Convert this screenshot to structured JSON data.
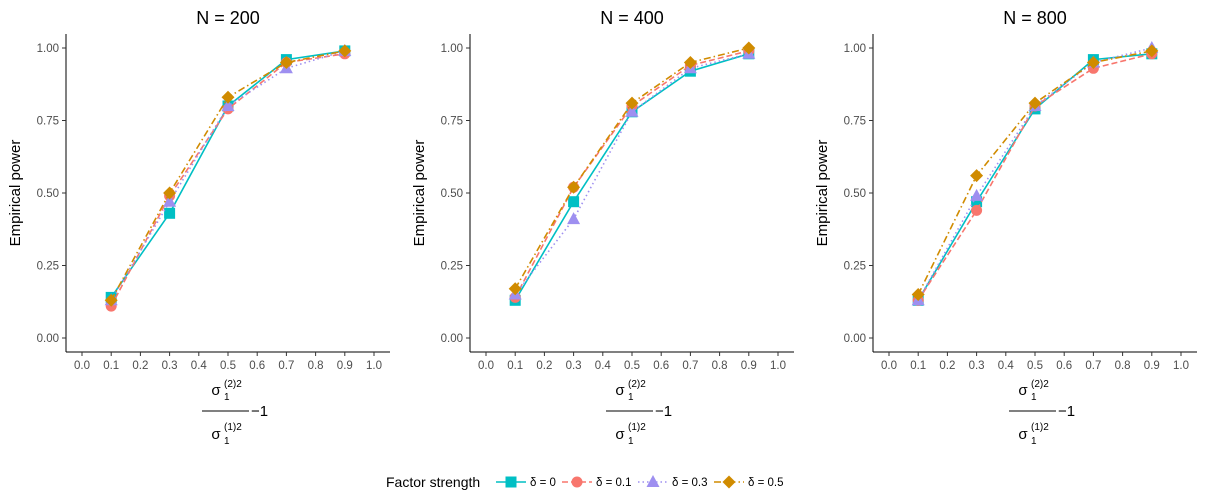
{
  "chart_data": {
    "type": "line",
    "xlabel": {
      "numerator_base": "σ",
      "numerator_sub": "1",
      "numerator_sup": "(2)2",
      "denominator_base": "σ",
      "denominator_sub": "1",
      "denominator_sup": "(1)2",
      "suffix": "−1"
    },
    "ylabel": "Empirical power",
    "xlim": [
      0.0,
      1.0
    ],
    "ylim": [
      0.0,
      1.0
    ],
    "x_ticks": [
      "0.0",
      "0.1",
      "0.2",
      "0.3",
      "0.4",
      "0.5",
      "0.6",
      "0.7",
      "0.8",
      "0.9",
      "1.0"
    ],
    "y_ticks": [
      "0.00",
      "0.25",
      "0.50",
      "0.75",
      "1.00"
    ],
    "grid": false,
    "legend": {
      "title": "Factor strength",
      "placement": "bottom",
      "entries": [
        {
          "label_prefix": "δ",
          "label_value": "0",
          "color": "#00BFC4",
          "marker": "square",
          "dash": "solid"
        },
        {
          "label_prefix": "δ",
          "label_value": "0.1",
          "color": "#F8766D",
          "marker": "circle",
          "dash": "dashed"
        },
        {
          "label_prefix": "δ",
          "label_value": "0.3",
          "color": "#9E8FF0",
          "marker": "triangle",
          "dash": "dotted"
        },
        {
          "label_prefix": "δ",
          "label_value": "0.5",
          "color": "#D08B00",
          "marker": "diamond",
          "dash": "dotdash"
        }
      ]
    },
    "x": [
      0.1,
      0.3,
      0.5,
      0.7,
      0.9
    ],
    "panels": [
      {
        "title": "N = 200",
        "series": [
          {
            "name": "δ = 0",
            "values": [
              0.14,
              0.43,
              0.8,
              0.96,
              0.99
            ]
          },
          {
            "name": "δ = 0.1",
            "values": [
              0.11,
              0.49,
              0.79,
              0.95,
              0.98
            ]
          },
          {
            "name": "δ = 0.3",
            "values": [
              0.13,
              0.47,
              0.8,
              0.93,
              0.99
            ]
          },
          {
            "name": "δ = 0.5",
            "values": [
              0.13,
              0.5,
              0.83,
              0.95,
              0.99
            ]
          }
        ]
      },
      {
        "title": "N = 400",
        "series": [
          {
            "name": "δ = 0",
            "values": [
              0.13,
              0.47,
              0.78,
              0.92,
              0.98
            ]
          },
          {
            "name": "δ = 0.1",
            "values": [
              0.14,
              0.52,
              0.8,
              0.94,
              0.99
            ]
          },
          {
            "name": "δ = 0.3",
            "values": [
              0.15,
              0.41,
              0.78,
              0.93,
              0.98
            ]
          },
          {
            "name": "δ = 0.5",
            "values": [
              0.17,
              0.52,
              0.81,
              0.95,
              1.0
            ]
          }
        ]
      },
      {
        "title": "N = 800",
        "series": [
          {
            "name": "δ = 0",
            "values": [
              0.13,
              0.47,
              0.79,
              0.96,
              0.98
            ]
          },
          {
            "name": "δ = 0.1",
            "values": [
              0.13,
              0.44,
              0.8,
              0.93,
              0.98
            ]
          },
          {
            "name": "δ = 0.3",
            "values": [
              0.13,
              0.49,
              0.8,
              0.95,
              1.0
            ]
          },
          {
            "name": "δ = 0.5",
            "values": [
              0.15,
              0.56,
              0.81,
              0.95,
              0.99
            ]
          }
        ]
      }
    ]
  }
}
